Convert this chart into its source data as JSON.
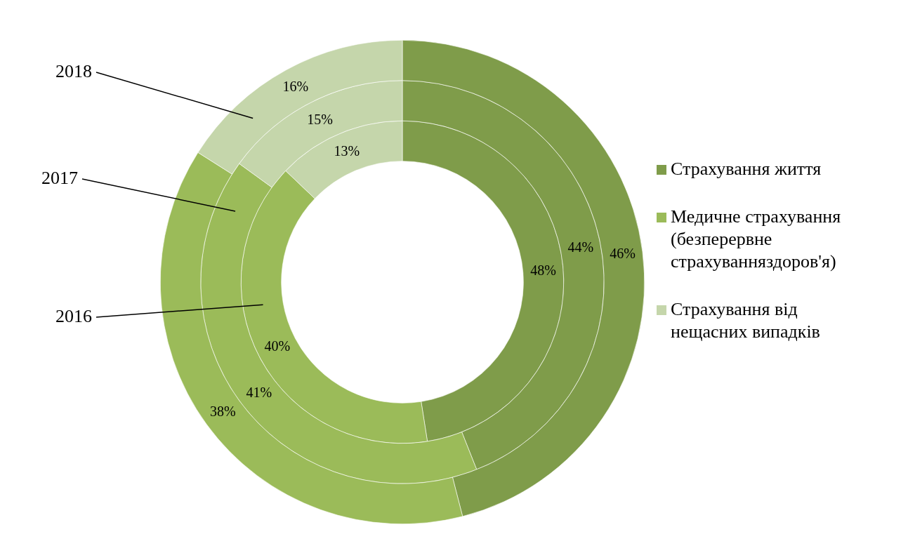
{
  "chart_data": {
    "type": "donut",
    "categories": [
      "Страхування життя",
      "Медичне страхування (безперервне страхуванняздоров'я)",
      "Страхування від нещасних випадків"
    ],
    "colors": [
      "#7f9c4a",
      "#9bbb59",
      "#c5d6ab"
    ],
    "series": [
      {
        "name": "2016",
        "values": [
          48,
          40,
          13
        ],
        "value_labels": [
          "48%",
          "40%",
          "13%"
        ]
      },
      {
        "name": "2017",
        "values": [
          44,
          41,
          15
        ],
        "value_labels": [
          "44%",
          "41%",
          "15%"
        ]
      },
      {
        "name": "2018",
        "values": [
          46,
          38,
          16
        ],
        "value_labels": [
          "46%",
          "38%",
          "16%"
        ]
      }
    ],
    "legend": "right"
  }
}
